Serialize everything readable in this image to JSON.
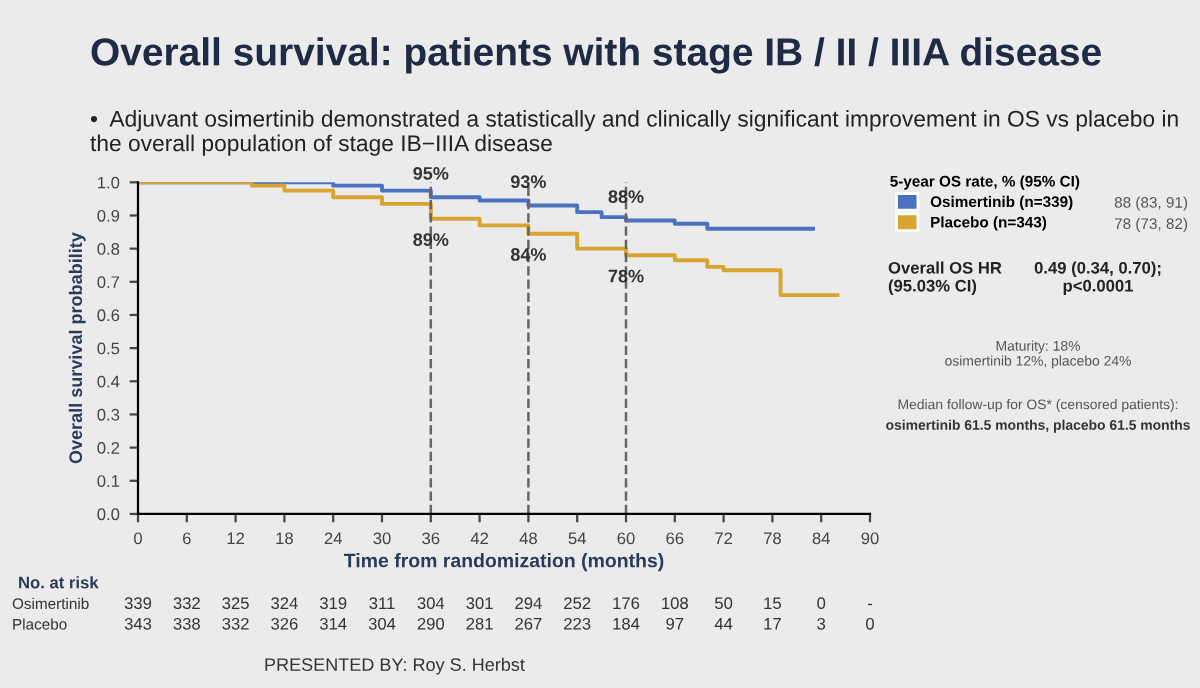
{
  "chart_data": {
    "type": "step",
    "title": "Overall survival: patients with stage IB / II / IIIA disease",
    "subtitle": "•  Adjuvant osimertinib demonstrated a statistically and clinically significant improvement in OS vs placebo in the overall population of stage IB−IIIA disease",
    "xlabel": "Time from randomization (months)",
    "ylabel": "Overall survival probability",
    "legend_title": "5-year OS rate, % (95% CI)",
    "legend": "right",
    "grid": false,
    "marker": "none",
    "line_style": "solid",
    "xlim": [
      0,
      90
    ],
    "xticks": [
      0,
      6,
      12,
      18,
      24,
      30,
      36,
      42,
      48,
      54,
      60,
      66,
      72,
      78,
      84,
      90
    ],
    "ylim": [
      0,
      1.0
    ],
    "yticks": [
      {
        "value": 0,
        "label": "0.0"
      },
      0.1,
      0.2,
      0.3,
      0.4,
      0.5,
      0.6,
      0.7,
      0.8,
      0.9,
      {
        "value": 1,
        "label": "1.0"
      }
    ],
    "series": [
      {
        "name": "Osimertinib (n=339)",
        "color": "#4a72c0",
        "x": [
          0,
          21,
          24,
          30,
          36,
          42,
          48,
          54,
          57,
          60,
          66,
          70,
          78,
          83
        ],
        "values": [
          1.0,
          1.0,
          0.99,
          0.975,
          0.955,
          0.945,
          0.93,
          0.91,
          0.895,
          0.885,
          0.875,
          0.86,
          0.86,
          0.86
        ]
      },
      {
        "name": "Placebo (n=343)",
        "color": "#d9a531",
        "x": [
          0,
          12,
          14,
          18,
          24,
          30,
          36,
          42,
          48,
          54,
          60,
          66,
          70,
          72,
          78,
          79,
          86
        ],
        "values": [
          1.0,
          1.0,
          0.99,
          0.975,
          0.955,
          0.935,
          0.89,
          0.87,
          0.845,
          0.8,
          0.78,
          0.765,
          0.745,
          0.735,
          0.735,
          0.66,
          0.66
        ]
      }
    ],
    "ref_lines": [
      {
        "axis": "x",
        "value": 36,
        "color": "#666666",
        "line_style": "dashed"
      },
      {
        "axis": "x",
        "value": 48,
        "color": "#666666",
        "line_style": "dashed"
      },
      {
        "axis": "x",
        "value": 60,
        "color": "#666666",
        "line_style": "dashed"
      }
    ],
    "annotations": [
      {
        "text": "95%",
        "x": 36,
        "y": 0.955
      },
      {
        "text": "89%",
        "x": 36,
        "y": 0.89
      },
      {
        "text": "93%",
        "x": 48,
        "y": 0.93
      },
      {
        "text": "84%",
        "x": 48,
        "y": 0.845
      },
      {
        "text": "88%",
        "x": 60,
        "y": 0.885
      },
      {
        "text": "78%",
        "x": 60,
        "y": 0.78
      },
      "88 (83, 91)",
      "78 (73, 82)",
      "Overall OS HR\n(95.03% CI)",
      "0.49 (0.34, 0.70);\np<0.0001",
      "Maturity: 18%\nosimertinib 12%, placebo 24%",
      "Median follow-up for OS* (censored patients):\nosimertinib 61.5 months, placebo 61.5 months",
      "No. at risk",
      "Osimertinib 339 332 325 324 319 311 304 301 294 252 176 108 50 15 0 -",
      "Placebo 343 338 332 326 314 304 290 281 267 223 184 97 44 17 3 0",
      "PRESENTED BY: Roy S. Herbst"
    ]
  }
}
